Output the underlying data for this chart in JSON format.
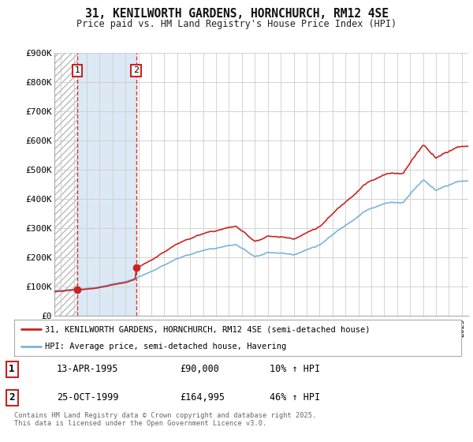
{
  "title": "31, KENILWORTH GARDENS, HORNCHURCH, RM12 4SE",
  "subtitle": "Price paid vs. HM Land Registry's House Price Index (HPI)",
  "ylim": [
    0,
    900000
  ],
  "yticks": [
    0,
    100000,
    200000,
    300000,
    400000,
    500000,
    600000,
    700000,
    800000,
    900000
  ],
  "ytick_labels": [
    "£0",
    "£100K",
    "£200K",
    "£300K",
    "£400K",
    "£500K",
    "£600K",
    "£700K",
    "£800K",
    "£900K"
  ],
  "hpi_color": "#7ab4d8",
  "price_color": "#cc2222",
  "marker1_date": 1995.28,
  "marker1_price": 90000,
  "marker2_date": 1999.81,
  "marker2_price": 164995,
  "legend_price_label": "31, KENILWORTH GARDENS, HORNCHURCH, RM12 4SE (semi-detached house)",
  "legend_hpi_label": "HPI: Average price, semi-detached house, Havering",
  "table_row1": [
    "1",
    "13-APR-1995",
    "£90,000",
    "10% ↑ HPI"
  ],
  "table_row2": [
    "2",
    "25-OCT-1999",
    "£164,995",
    "46% ↑ HPI"
  ],
  "footnote": "Contains HM Land Registry data © Crown copyright and database right 2025.\nThis data is licensed under the Open Government Licence v3.0.",
  "background_color": "#ffffff",
  "grid_color": "#cccccc",
  "xlim_start": 1993.5,
  "xlim_end": 2025.5
}
